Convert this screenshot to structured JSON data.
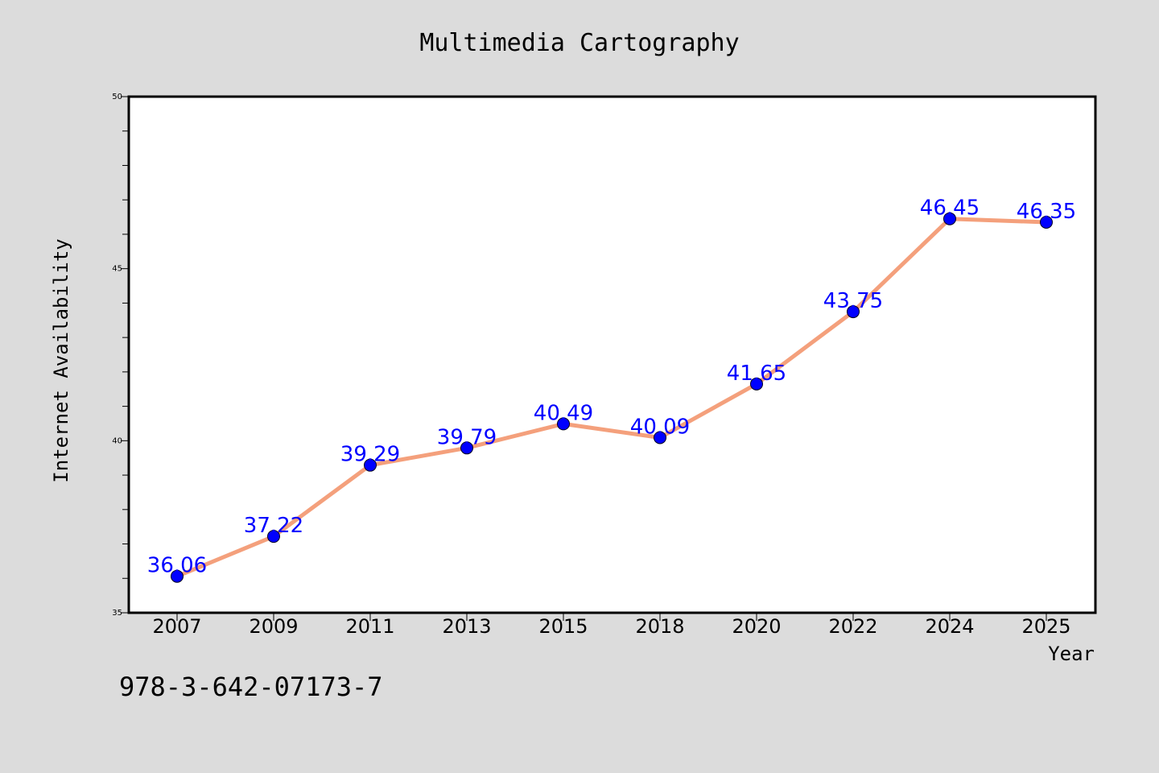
{
  "chart_data": {
    "type": "line",
    "title": "Multimedia Cartography",
    "xlabel": "Year",
    "ylabel": "Internet Availability",
    "categories": [
      "2007",
      "2009",
      "2011",
      "2013",
      "2015",
      "2018",
      "2020",
      "2022",
      "2024",
      "2025"
    ],
    "values": [
      36.06,
      37.22,
      39.29,
      39.79,
      40.49,
      40.09,
      41.65,
      43.75,
      46.45,
      46.35
    ],
    "data_labels": [
      "36.06",
      "37.22",
      "39.29",
      "39.79",
      "40.49",
      "40.09",
      "41.65",
      "43.75",
      "46.45",
      "46.35"
    ],
    "ylim": [
      35,
      50
    ],
    "yticks": [
      35,
      40,
      45,
      50
    ],
    "grid": false,
    "colors": {
      "line": "#f4a07c",
      "marker": "#0000ff",
      "label": "#0000ff",
      "background": "#dcdcdc",
      "plot_background": "#ffffff"
    }
  },
  "footer": {
    "isbn": "978-3-642-07173-7"
  }
}
